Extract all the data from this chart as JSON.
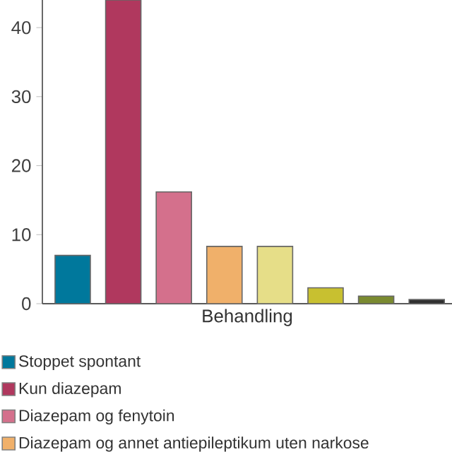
{
  "chart_data": {
    "type": "bar",
    "xlabel": "Behandling",
    "categories": [
      null
    ],
    "series": [
      {
        "name": "Stoppet spontant",
        "color": "#00789c",
        "values": [
          7
        ]
      },
      {
        "name": "Kun diazepam",
        "color": "#b0385e",
        "values": [
          44
        ]
      },
      {
        "name": "Diazepam og fenytoin",
        "color": "#d4708c",
        "values": [
          16.2
        ]
      },
      {
        "name": "Diazepam og annet antiepileptikum uten narkose",
        "color": "#f0b06a",
        "values": [
          8.3
        ]
      },
      {
        "color": "#e6de88",
        "values": [
          8.3
        ]
      },
      {
        "color": "#c8c030",
        "values": [
          2.3
        ]
      },
      {
        "color": "#7a8a30",
        "values": [
          1.1
        ]
      },
      {
        "color": "#303030",
        "values": [
          0.6
        ]
      }
    ],
    "ylim": [
      0,
      44
    ],
    "yticks": [
      0,
      10,
      20,
      30,
      40
    ],
    "legend": "bottom"
  }
}
